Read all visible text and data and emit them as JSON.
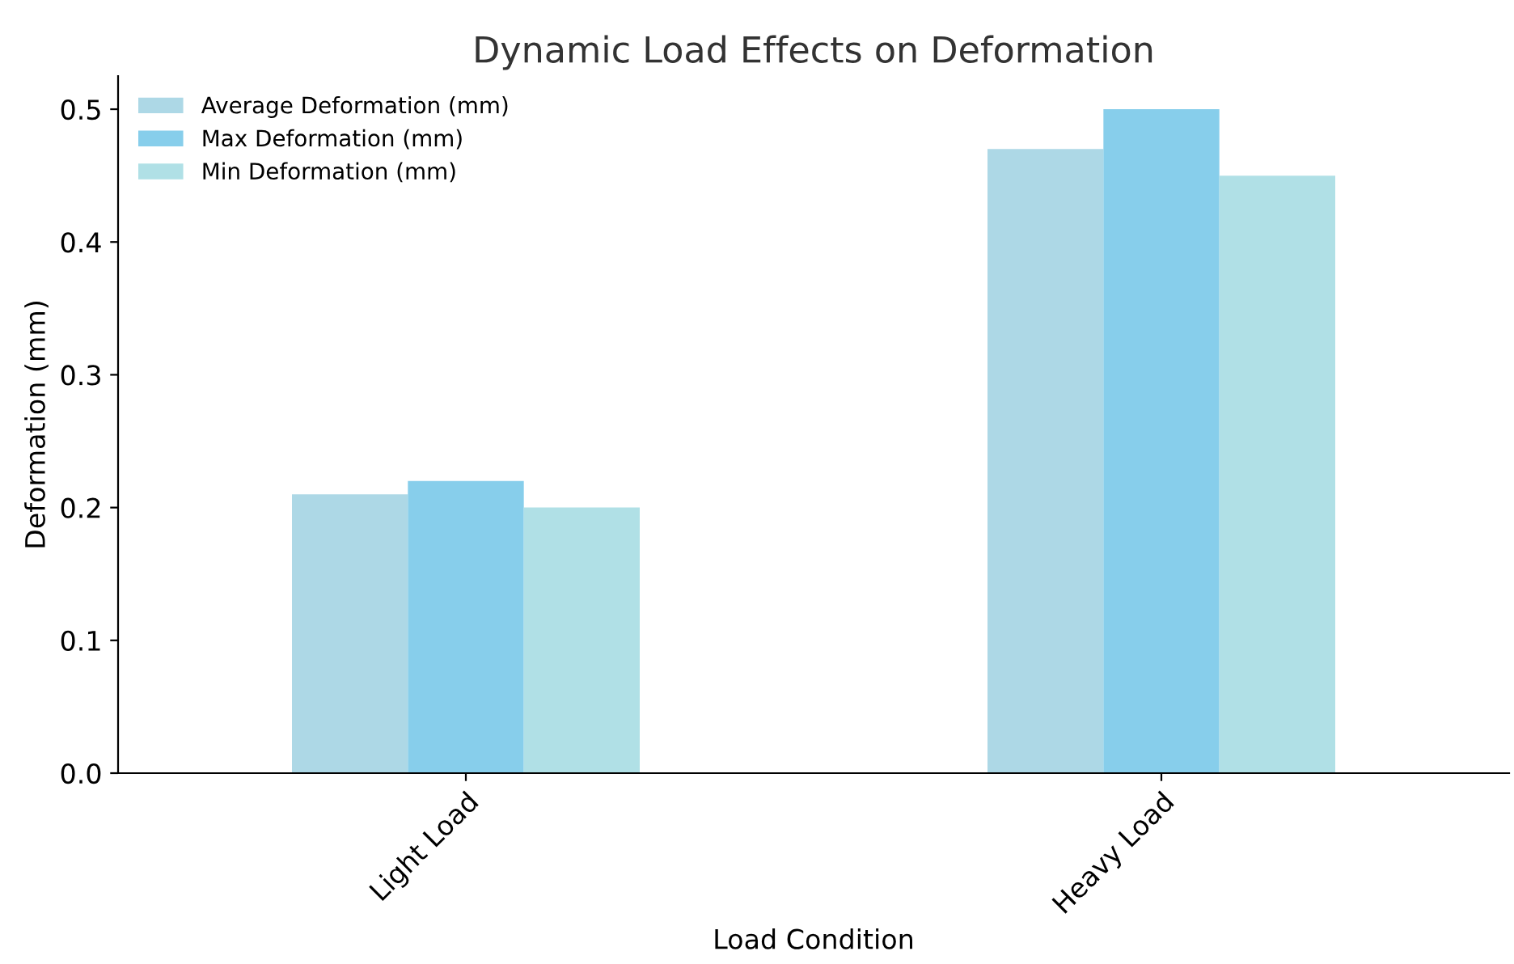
{
  "chart_data": {
    "type": "bar",
    "title": "Dynamic Load Effects on Deformation",
    "xlabel": "Load Condition",
    "ylabel": "Deformation (mm)",
    "categories": [
      "Light Load",
      "Heavy Load"
    ],
    "series": [
      {
        "name": "Average Deformation (mm)",
        "color": "#add8e6",
        "values": [
          0.21,
          0.47
        ]
      },
      {
        "name": "Max Deformation (mm)",
        "color": "#87ceeb",
        "values": [
          0.22,
          0.5
        ]
      },
      {
        "name": "Min Deformation (mm)",
        "color": "#b0e0e6",
        "values": [
          0.2,
          0.45
        ]
      }
    ],
    "ylim": [
      0,
      0.525
    ],
    "yticks": [
      {
        "value": 0,
        "label": "0.0"
      },
      0.1,
      0.2,
      0.3,
      0.4,
      0.5
    ],
    "grid": false,
    "legend": "top left"
  }
}
